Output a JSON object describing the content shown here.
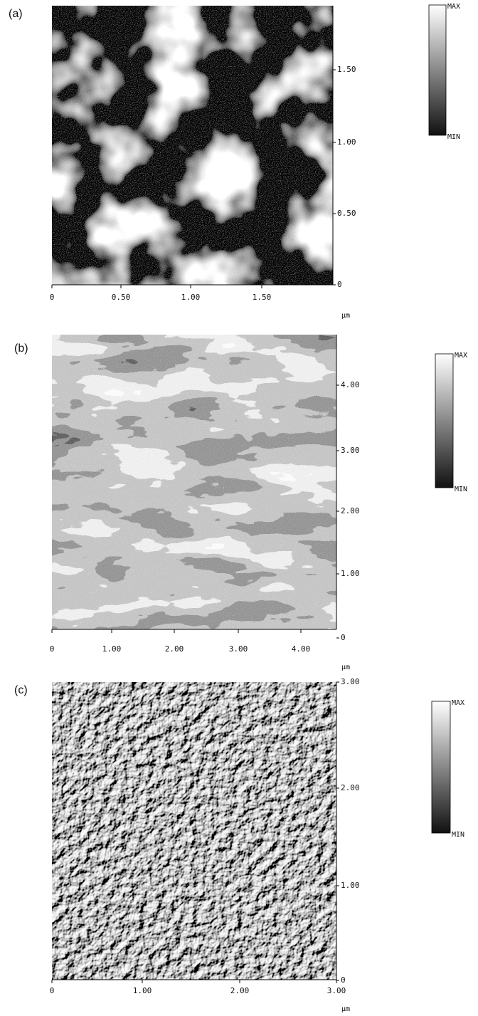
{
  "panels": [
    {
      "label": "(a)",
      "xticks": [
        "0",
        "0.50",
        "1.00",
        "1.50"
      ],
      "yticks": [
        "1.50",
        "1.00",
        "0.50",
        "0"
      ],
      "unit": "μm",
      "colorbar": {
        "max": "MAX",
        "min": "MIN"
      }
    },
    {
      "label": "(b)",
      "xticks": [
        "0",
        "1.00",
        "2.00",
        "3.00",
        "4.00"
      ],
      "yticks": [
        "4.00",
        "3.00",
        "2.00",
        "1.00",
        "0"
      ],
      "unit": "μm",
      "colorbar": {
        "max": "MAX",
        "min": "MIN"
      }
    },
    {
      "label": "(c)",
      "xticks": [
        "0",
        "1.00",
        "2.00",
        "3.00"
      ],
      "yticks": [
        "3.00",
        "2.00",
        "1.00",
        "0"
      ],
      "unit": "μm",
      "colorbar": {
        "max": "MAX",
        "min": "MIN"
      }
    }
  ]
}
